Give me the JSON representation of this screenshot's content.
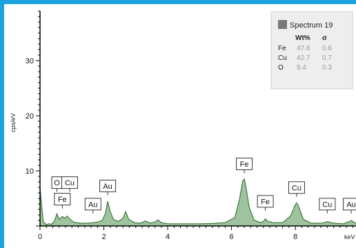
{
  "chart_data": {
    "type": "line",
    "title": "",
    "xlabel": "keV",
    "ylabel": "cps/eV",
    "xlim": [
      0,
      9.9
    ],
    "ylim": [
      0,
      39
    ],
    "x_ticks": [
      0,
      2,
      4,
      6,
      8
    ],
    "y_ticks": [
      10,
      20,
      30
    ],
    "x_tick_labels": [
      "0",
      "2",
      "4",
      "6",
      "8"
    ],
    "y_tick_labels": [
      "10",
      "20",
      "30"
    ],
    "grid": false,
    "line_color": "#3f7a3f",
    "fill_color": "#9fc29f",
    "series": [
      {
        "x": [
          0,
          0.1,
          0.2,
          0.27,
          0.35,
          0.45,
          0.53,
          0.6,
          0.7,
          0.78,
          0.85,
          0.93,
          1.0,
          1.1,
          1.3,
          1.5,
          1.66,
          1.8,
          1.95,
          2.05,
          2.12,
          2.2,
          2.3,
          2.45,
          2.6,
          2.68,
          2.78,
          2.95,
          3.15,
          3.3,
          3.45,
          3.6,
          3.7,
          3.8,
          4.0,
          4.3,
          4.6,
          5.0,
          5.4,
          5.8,
          6.1,
          6.25,
          6.35,
          6.4,
          6.45,
          6.55,
          6.7,
          6.9,
          7.0,
          7.06,
          7.12,
          7.3,
          7.6,
          7.85,
          8.0,
          8.04,
          8.1,
          8.25,
          8.5,
          8.8,
          8.9,
          9.0,
          9.2,
          9.5,
          9.7,
          9.75,
          9.8,
          9.9
        ],
        "y": [
          7.0,
          0.8,
          0.2,
          0.4,
          0.3,
          0.8,
          2.2,
          1.2,
          1.7,
          1.4,
          1.8,
          1.3,
          0.9,
          0.6,
          0.5,
          0.5,
          0.6,
          0.7,
          1.0,
          2.3,
          4.5,
          2.6,
          1.2,
          0.8,
          1.4,
          2.6,
          1.2,
          0.6,
          0.5,
          0.9,
          0.5,
          0.7,
          1.1,
          0.6,
          0.4,
          0.4,
          0.4,
          0.4,
          0.45,
          0.6,
          1.5,
          4.8,
          8.2,
          8.5,
          7.2,
          3.5,
          1.1,
          0.6,
          0.8,
          1.3,
          0.9,
          0.6,
          0.6,
          1.8,
          3.9,
          4.2,
          3.6,
          1.2,
          0.5,
          0.5,
          0.6,
          0.8,
          0.5,
          0.4,
          0.8,
          1.0,
          0.8,
          0.5
        ]
      }
    ],
    "peak_labels": [
      {
        "text": "O",
        "x": 0.53,
        "y": 6.8
      },
      {
        "text": "Cu",
        "x": 0.93,
        "y": 6.8
      },
      {
        "text": "Fe",
        "x": 0.7,
        "y": 3.8
      },
      {
        "text": "Au",
        "x": 1.66,
        "y": 2.9
      },
      {
        "text": "Au",
        "x": 2.12,
        "y": 6.2
      },
      {
        "text": "Fe",
        "x": 6.4,
        "y": 10.2
      },
      {
        "text": "Fe",
        "x": 7.06,
        "y": 3.4
      },
      {
        "text": "Cu",
        "x": 8.04,
        "y": 5.9
      },
      {
        "text": "Cu",
        "x": 9.0,
        "y": 2.9
      },
      {
        "text": "Au",
        "x": 9.75,
        "y": 2.9
      }
    ],
    "legend": {
      "title": "Spectrum 19",
      "swatch_color": "#7a7a7a",
      "headers": [
        "Wt%",
        "σ"
      ],
      "rows": [
        {
          "element": "Fe",
          "wt": "47.8",
          "sigma": "0.6"
        },
        {
          "element": "Cu",
          "wt": "42.7",
          "sigma": "0.7"
        },
        {
          "element": "O",
          "wt": "9.4",
          "sigma": "0.3"
        }
      ],
      "position": "top-right"
    }
  }
}
